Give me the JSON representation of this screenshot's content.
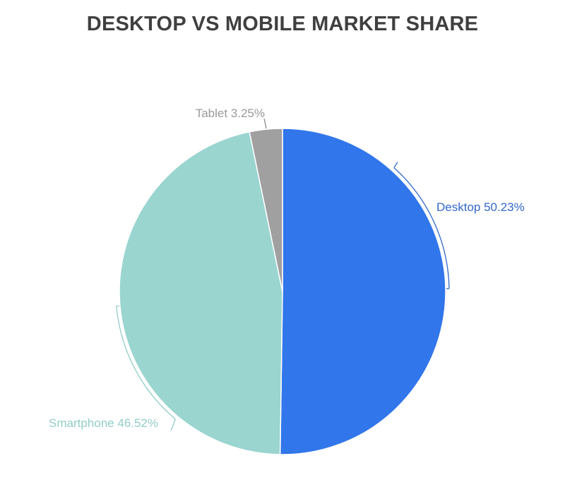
{
  "chart_data": {
    "type": "pie",
    "title": "DESKTOP VS MOBILE MARKET SHARE",
    "categories": [
      "Desktop",
      "Smartphone",
      "Tablet"
    ],
    "values": [
      50.23,
      46.52,
      3.25
    ],
    "labels": [
      "Desktop 50.23%",
      "Smartphone 46.52%",
      "Tablet 3.25%"
    ],
    "colors": [
      "#3176ea",
      "#9ad5d0",
      "#a0a0a0"
    ],
    "label_colors": [
      "#3369c9",
      "#92cdc8",
      "#9a9a9a"
    ],
    "start_angle_deg": 0,
    "direction": "clockwise",
    "legend": "none (inline labels with leader lines)"
  }
}
